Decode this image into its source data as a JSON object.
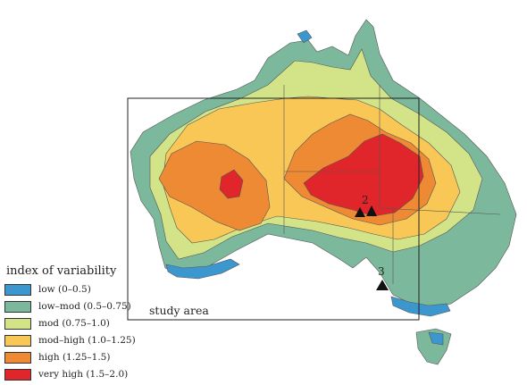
{
  "map": {
    "colors": {
      "low": "#3d97cf",
      "low_mod": "#7cb89c",
      "mod": "#d3e387",
      "mod_high": "#f8c756",
      "high": "#ee8a33",
      "very_high": "#e0262b",
      "outline": "#555555"
    },
    "study_area_label": "study area",
    "site_labels": [
      "2",
      "3"
    ]
  },
  "legend": {
    "title": "index of variability",
    "items": [
      {
        "label": "low (0–0.5)",
        "color": "#3d97cf"
      },
      {
        "label": "low–mod (0.5–0.75)",
        "color": "#7cb89c"
      },
      {
        "label": "mod (0.75–1.0)",
        "color": "#d3e387"
      },
      {
        "label": "mod–high (1.0–1.25)",
        "color": "#f8c756"
      },
      {
        "label": "high (1.25–1.5)",
        "color": "#ee8a33"
      },
      {
        "label": "very high (1.5–2.0)",
        "color": "#e0262b"
      }
    ]
  }
}
